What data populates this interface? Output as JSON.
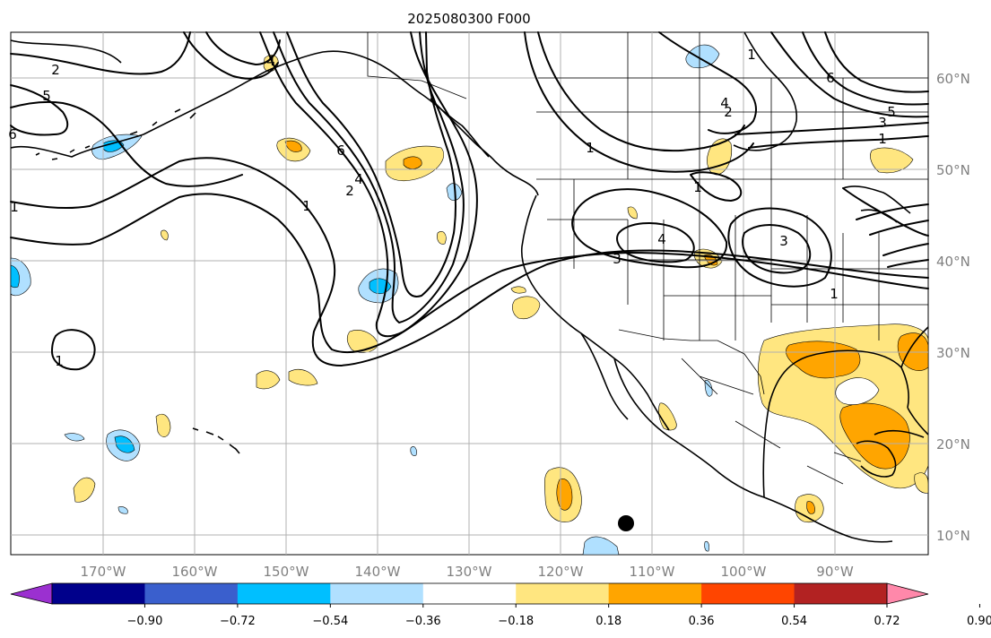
{
  "title": "2025080300 F000",
  "lon_labels": [
    "170°W",
    "160°W",
    "150°W",
    "140°W",
    "130°W",
    "120°W",
    "110°W",
    "100°W",
    "90°W"
  ],
  "lat_labels": [
    "60°N",
    "50°N",
    "40°N",
    "30°N",
    "20°N",
    "10°N"
  ],
  "colorbar": {
    "ticks": [
      "−0.90",
      "−0.72",
      "−0.54",
      "−0.36",
      "−0.18",
      "0.18",
      "0.36",
      "0.54",
      "0.72",
      "0.90"
    ],
    "colors": [
      "#9b30d0",
      "#00008b",
      "#3a5fcd",
      "#00bfff",
      "#b0e0ff",
      "#ffffff",
      "#ffe680",
      "#ffa500",
      "#ff4500",
      "#b22222",
      "#ff88aa"
    ]
  },
  "contour_labels": [
    "2",
    "5",
    "6",
    "1",
    "6",
    "4",
    "2",
    "1",
    "4",
    "1",
    "1",
    "4",
    "1",
    "4",
    "3",
    "3",
    "1",
    "2",
    "5",
    "3",
    "6",
    "1",
    "1"
  ],
  "colors": {
    "pos_light": "#ffe680",
    "pos_mid": "#ffa500",
    "neg_light": "#b0e0ff",
    "neg_mid": "#00bfff"
  },
  "marker": "filled-circle"
}
